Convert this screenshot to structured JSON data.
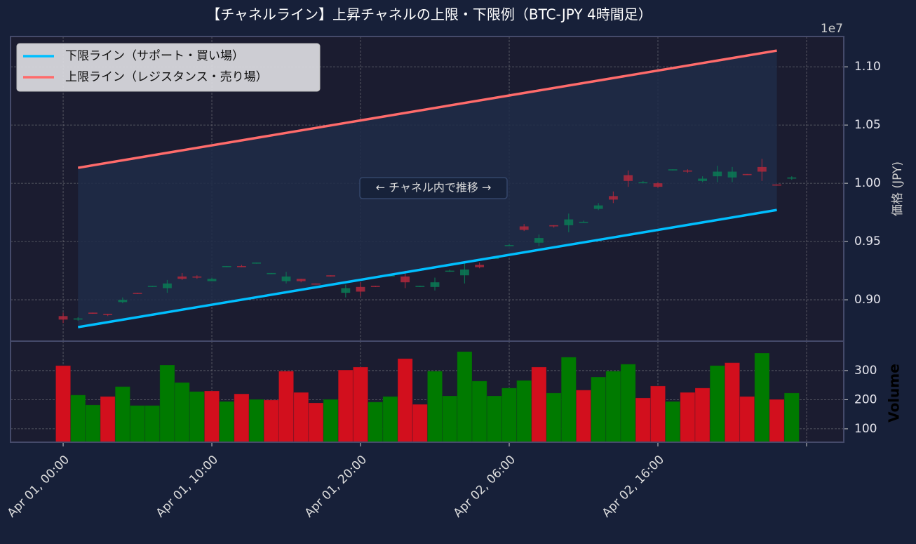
{
  "chart_data": [
    {
      "type": "candlestick",
      "title": "【チャネルライン】上昇チャネルの上限・下限例（BTC-JPY 4時間足）",
      "offset_text": "1e7",
      "ylabel": "価格 (JPY)",
      "x": [
        0,
        1,
        2,
        3,
        4,
        5,
        6,
        7,
        8,
        9,
        10,
        11,
        12,
        13,
        14,
        15,
        16,
        17,
        18,
        19,
        20,
        21,
        22,
        23,
        24,
        25,
        26,
        27,
        28,
        29,
        30,
        31,
        32,
        33,
        34,
        35,
        36,
        37,
        38,
        39,
        40,
        41,
        42,
        43,
        44,
        45,
        46,
        47,
        48,
        49
      ],
      "open": [
        0.886,
        0.883,
        0.889,
        0.888,
        0.898,
        0.906,
        0.911,
        0.91,
        0.92,
        0.92,
        0.916,
        0.928,
        0.929,
        0.931,
        0.922,
        0.916,
        0.918,
        0.914,
        0.921,
        0.906,
        0.911,
        0.912,
        0.92,
        0.92,
        0.911,
        0.911,
        0.925,
        0.921,
        0.93,
        0.935,
        0.946,
        0.963,
        0.949,
        0.964,
        0.964,
        0.966,
        0.978,
        0.989,
        1.007,
        1.0,
        1.0,
        1.011,
        1.011,
        1.002,
        1.006,
        1.005,
        1.008,
        1.014,
        0.999,
        1.004
      ],
      "high": [
        0.889,
        0.885,
        0.889,
        0.888,
        0.902,
        0.906,
        0.912,
        0.917,
        0.923,
        0.921,
        0.919,
        0.929,
        0.93,
        0.932,
        0.923,
        0.924,
        0.918,
        0.914,
        0.921,
        0.913,
        0.915,
        0.912,
        0.921,
        0.925,
        0.912,
        0.919,
        0.926,
        0.933,
        0.932,
        0.936,
        0.948,
        0.965,
        0.956,
        0.964,
        0.974,
        0.968,
        0.983,
        0.993,
        1.011,
        1.002,
        1.001,
        1.012,
        1.012,
        1.006,
        1.015,
        1.014,
        1.008,
        1.021,
        0.999,
        1.006
      ],
      "low": [
        0.88,
        0.882,
        0.888,
        0.886,
        0.897,
        0.905,
        0.911,
        0.906,
        0.917,
        0.918,
        0.916,
        0.928,
        0.928,
        0.931,
        0.922,
        0.914,
        0.915,
        0.913,
        0.92,
        0.902,
        0.903,
        0.911,
        0.92,
        0.91,
        0.911,
        0.908,
        0.924,
        0.914,
        0.927,
        0.935,
        0.946,
        0.959,
        0.946,
        0.962,
        0.958,
        0.966,
        0.977,
        0.983,
        0.997,
        1.0,
        0.996,
        1.011,
        1.009,
        1.001,
        1.001,
        1.001,
        1.007,
        1.002,
        0.998,
        1.003
      ],
      "close": [
        0.883,
        0.884,
        0.888,
        0.887,
        0.9,
        0.905,
        0.912,
        0.914,
        0.918,
        0.919,
        0.918,
        0.929,
        0.928,
        0.932,
        0.923,
        0.92,
        0.916,
        0.913,
        0.92,
        0.91,
        0.907,
        0.911,
        0.921,
        0.915,
        0.912,
        0.915,
        0.925,
        0.926,
        0.928,
        0.936,
        0.947,
        0.96,
        0.953,
        0.963,
        0.969,
        0.967,
        0.981,
        0.986,
        1.002,
        1.001,
        0.997,
        1.012,
        1.01,
        1.004,
        1.01,
        1.01,
        1.007,
        1.01,
        0.998,
        1.005
      ],
      "up_color": "#0b7a55",
      "down_color": "#b0283c",
      "series": [
        {
          "name": "下限ライン（サポート・買い場）",
          "color": "#00bfff",
          "x": [
            1,
            48
          ],
          "values": [
            0.8765,
            0.9771
          ]
        },
        {
          "name": "上限ライン（レジスタンス・売り場）",
          "color": "#ff6b6b",
          "x": [
            1,
            48
          ],
          "values": [
            1.0133,
            1.1139
          ]
        }
      ],
      "legend": "upper left",
      "annotation": "← チャネル内で推移 →",
      "xlim": [
        -3.54,
        52.5
      ],
      "ylim": [
        0.8645,
        1.126
      ],
      "yticks": [
        {
          "value": 0.9,
          "label": "0.90"
        },
        {
          "value": 0.95,
          "label": "0.95"
        },
        {
          "value": 1.0,
          "label": "1.00"
        },
        {
          "value": 1.05,
          "label": "1.05"
        },
        {
          "value": 1.1,
          "label": "1.10"
        }
      ],
      "grid": true
    },
    {
      "type": "bar",
      "ylabel": "Volume",
      "x": [
        0,
        1,
        2,
        3,
        4,
        5,
        6,
        7,
        8,
        9,
        10,
        11,
        12,
        13,
        14,
        15,
        16,
        17,
        18,
        19,
        20,
        21,
        22,
        23,
        24,
        25,
        26,
        27,
        28,
        29,
        30,
        31,
        32,
        33,
        34,
        35,
        36,
        37,
        38,
        39,
        40,
        41,
        42,
        43,
        44,
        45,
        46,
        47,
        48,
        49
      ],
      "values": [
        317,
        216,
        182,
        211,
        245,
        180,
        180,
        319,
        259,
        228,
        230,
        194,
        220,
        201,
        199,
        298,
        225,
        189,
        201,
        302,
        312,
        192,
        211,
        341,
        184,
        298,
        213,
        365,
        264,
        213,
        240,
        266,
        312,
        223,
        346,
        233,
        278,
        298,
        322,
        206,
        247,
        194,
        225,
        240,
        317,
        327,
        211,
        360,
        201,
        223
      ],
      "colors": [
        "#d20f1d",
        "#007a00",
        "#007a00",
        "#d20f1d",
        "#007a00",
        "#007a00",
        "#007a00",
        "#007a00",
        "#007a00",
        "#007a00",
        "#d20f1d",
        "#007a00",
        "#d20f1d",
        "#007a00",
        "#d20f1d",
        "#d20f1d",
        "#d20f1d",
        "#d20f1d",
        "#007a00",
        "#d20f1d",
        "#d20f1d",
        "#007a00",
        "#007a00",
        "#d20f1d",
        "#d20f1d",
        "#007a00",
        "#007a00",
        "#007a00",
        "#007a00",
        "#007a00",
        "#007a00",
        "#007a00",
        "#d20f1d",
        "#007a00",
        "#007a00",
        "#d20f1d",
        "#007a00",
        "#007a00",
        "#007a00",
        "#d20f1d",
        "#d20f1d",
        "#007a00",
        "#d20f1d",
        "#d20f1d",
        "#007a00",
        "#d20f1d",
        "#d20f1d",
        "#007a00",
        "#d20f1d",
        "#007a00"
      ],
      "xlim": [
        -3.54,
        52.5
      ],
      "ylim": [
        54,
        401
      ],
      "yticks": [
        100,
        200,
        300
      ],
      "xticks": [
        {
          "value": 0,
          "label": "Apr 01, 00:00"
        },
        {
          "value": 10,
          "label": "Apr 01, 10:00"
        },
        {
          "value": 20,
          "label": "Apr 01, 20:00"
        },
        {
          "value": 30,
          "label": "Apr 02, 06:00"
        },
        {
          "value": 40,
          "label": "Apr 02, 16:00"
        },
        {
          "value": 50,
          "label": null
        }
      ],
      "grid": true
    }
  ]
}
